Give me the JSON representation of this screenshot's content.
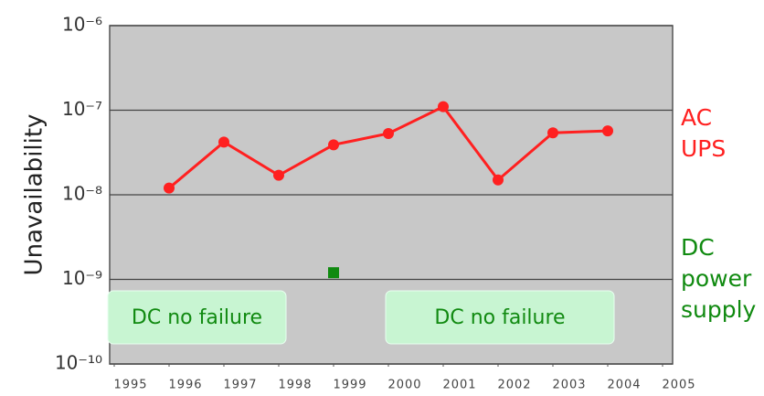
{
  "chart_data": {
    "type": "line",
    "y_label": "Unavailability",
    "x": [
      1996,
      1997,
      1998,
      1999,
      2000,
      2001,
      2002,
      2003,
      2004
    ],
    "series": [
      {
        "name": "AC UPS",
        "color": "#ff2020",
        "values": [
          1.2e-08,
          4.2e-08,
          1.7e-08,
          3.9e-08,
          5.3e-08,
          1.1e-07,
          1.5e-08,
          5.4e-08,
          5.7e-08
        ]
      },
      {
        "name": "DC power supply",
        "color": "#108a10",
        "values": [
          null,
          null,
          null,
          1.2e-09,
          null,
          null,
          null,
          null,
          null
        ]
      }
    ],
    "annotations": [
      "DC no failure",
      "DC no failure"
    ],
    "xlim": [
      1995,
      2005
    ],
    "xticks": [
      1995,
      1996,
      1997,
      1998,
      1999,
      2000,
      2001,
      2002,
      2003,
      2004,
      2005
    ],
    "ylim": [
      1e-10,
      1e-06
    ],
    "yticks": [
      {
        "value": 1e-10,
        "label": "10⁻¹⁰"
      },
      {
        "value": 1e-09,
        "label": "10⁻⁹"
      },
      {
        "value": 1e-08,
        "label": "10⁻⁸"
      },
      {
        "value": 1e-07,
        "label": "10⁻⁷"
      },
      {
        "value": 1e-06,
        "label": "10⁻⁶"
      }
    ],
    "log_y": true,
    "grid": true
  }
}
